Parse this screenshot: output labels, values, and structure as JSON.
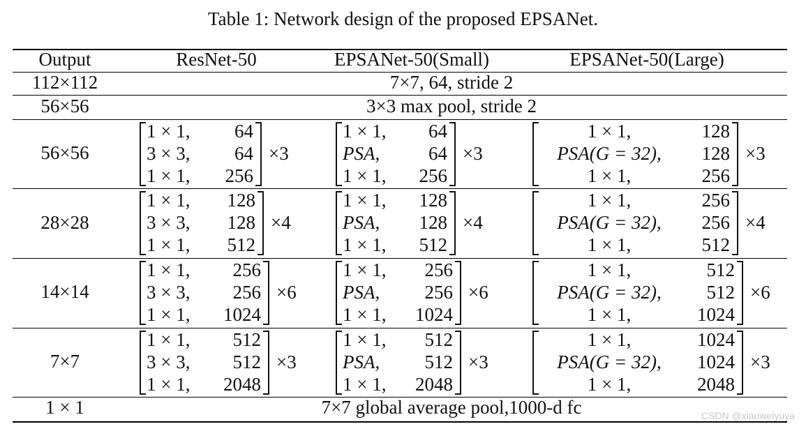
{
  "caption": "Table 1: Network design of the proposed EPSANet.",
  "columns": [
    "Output",
    "ResNet-50",
    "EPSANet-50(Small)",
    "EPSANet-50(Large)"
  ],
  "rows": [
    {
      "output": "112×112",
      "span": "7×7, 64, stride 2"
    },
    {
      "output": "56×56",
      "span": "3×3 max pool, stride 2"
    },
    {
      "output": "56×56",
      "resnet": {
        "rows": [
          [
            "1 × 1,",
            "64"
          ],
          [
            "3 × 3,",
            "64"
          ],
          [
            "1 × 1,",
            "256"
          ]
        ],
        "mult": "×3"
      },
      "small": {
        "rows": [
          [
            "1 × 1,",
            "64"
          ],
          [
            "PSA,",
            "64"
          ],
          [
            "1 × 1,",
            "256"
          ]
        ],
        "mult": "×3"
      },
      "large": {
        "rows": [
          [
            "1 × 1,",
            "128"
          ],
          [
            "PSA(G = 32),",
            "128"
          ],
          [
            "1 × 1,",
            "256"
          ]
        ],
        "mult": "×3"
      }
    },
    {
      "output": "28×28",
      "resnet": {
        "rows": [
          [
            "1 × 1,",
            "128"
          ],
          [
            "3 × 3,",
            "128"
          ],
          [
            "1 × 1,",
            "512"
          ]
        ],
        "mult": "×4"
      },
      "small": {
        "rows": [
          [
            "1 × 1,",
            "128"
          ],
          [
            "PSA,",
            "128"
          ],
          [
            "1 × 1,",
            "512"
          ]
        ],
        "mult": "×4"
      },
      "large": {
        "rows": [
          [
            "1 × 1,",
            "256"
          ],
          [
            "PSA(G = 32),",
            "256"
          ],
          [
            "1 × 1,",
            "512"
          ]
        ],
        "mult": "×4"
      }
    },
    {
      "output": "14×14",
      "resnet": {
        "rows": [
          [
            "1 × 1,",
            "256"
          ],
          [
            "3 × 3,",
            "256"
          ],
          [
            "1 × 1,",
            "1024"
          ]
        ],
        "mult": "×6"
      },
      "small": {
        "rows": [
          [
            "1 × 1,",
            "256"
          ],
          [
            "PSA,",
            "256"
          ],
          [
            "1 × 1,",
            "1024"
          ]
        ],
        "mult": "×6"
      },
      "large": {
        "rows": [
          [
            "1 × 1,",
            "512"
          ],
          [
            "PSA(G = 32),",
            "512"
          ],
          [
            "1 × 1,",
            "1024"
          ]
        ],
        "mult": "×6"
      }
    },
    {
      "output": "7×7",
      "resnet": {
        "rows": [
          [
            "1 × 1,",
            "512"
          ],
          [
            "3 × 3,",
            "512"
          ],
          [
            "1 × 1,",
            "2048"
          ]
        ],
        "mult": "×3"
      },
      "small": {
        "rows": [
          [
            "1 × 1,",
            "512"
          ],
          [
            "PSA,",
            "512"
          ],
          [
            "1 × 1,",
            "2048"
          ]
        ],
        "mult": "×3"
      },
      "large": {
        "rows": [
          [
            "1 × 1,",
            "1024"
          ],
          [
            "PSA(G = 32),",
            "1024"
          ],
          [
            "1 × 1,",
            "2048"
          ]
        ],
        "mult": "×3"
      }
    },
    {
      "output": "1 × 1",
      "span": "7×7 global average pool,1000-d fc"
    }
  ],
  "watermark": "CSDN @xiaoweiyuya"
}
